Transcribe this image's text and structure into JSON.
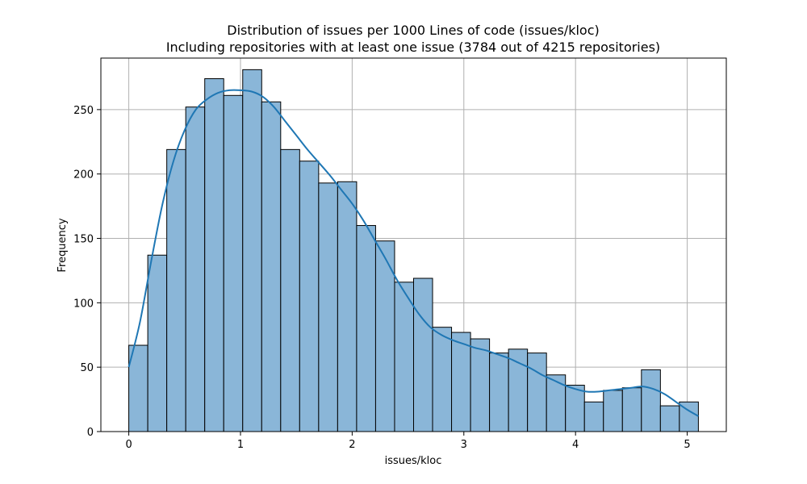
{
  "chart_data": {
    "type": "bar",
    "title": "Distribution of issues per 1000 Lines of code (issues/kloc)",
    "subtitle": "Including repositories with at least one issue (3784 out of 4215 repositories)",
    "xlabel": "issues/kloc",
    "ylabel": "Frequency",
    "xlim": [
      -0.25,
      5.35
    ],
    "ylim": [
      0,
      290
    ],
    "xticks": [
      0,
      1,
      2,
      3,
      4,
      5
    ],
    "yticks": [
      0,
      50,
      100,
      150,
      200,
      250
    ],
    "grid": true,
    "bar_color": "#8ab6d8",
    "bar_edge_color": "#000000",
    "kde_color": "#1f77b4",
    "bins": {
      "x0": 0.0,
      "width": 0.17,
      "values": [
        67,
        137,
        219,
        252,
        274,
        261,
        281,
        256,
        219,
        210,
        193,
        194,
        160,
        148,
        116,
        119,
        81,
        77,
        72,
        61,
        64,
        61,
        44,
        36,
        23,
        32,
        34,
        48,
        20,
        23
      ]
    },
    "kde": {
      "x": [
        0.0,
        0.1,
        0.2,
        0.3,
        0.4,
        0.5,
        0.6,
        0.7,
        0.8,
        0.9,
        1.0,
        1.1,
        1.2,
        1.3,
        1.4,
        1.5,
        1.6,
        1.7,
        1.8,
        1.9,
        2.0,
        2.1,
        2.2,
        2.3,
        2.4,
        2.5,
        2.6,
        2.7,
        2.8,
        2.9,
        3.0,
        3.1,
        3.2,
        3.3,
        3.4,
        3.5,
        3.6,
        3.7,
        3.8,
        3.9,
        4.0,
        4.1,
        4.2,
        4.3,
        4.4,
        4.5,
        4.6,
        4.7,
        4.8,
        4.9,
        5.0,
        5.1
      ],
      "y": [
        50,
        85,
        132,
        176,
        210,
        234,
        250,
        258,
        263,
        265,
        265,
        264,
        260,
        252,
        241,
        230,
        219,
        209,
        199,
        188,
        177,
        164,
        149,
        134,
        118,
        104,
        91,
        81,
        75,
        71,
        68,
        65,
        63,
        60,
        57,
        53,
        49,
        44,
        40,
        36,
        33,
        31,
        31,
        32,
        33,
        34,
        35,
        33,
        29,
        23,
        17,
        12
      ]
    }
  }
}
